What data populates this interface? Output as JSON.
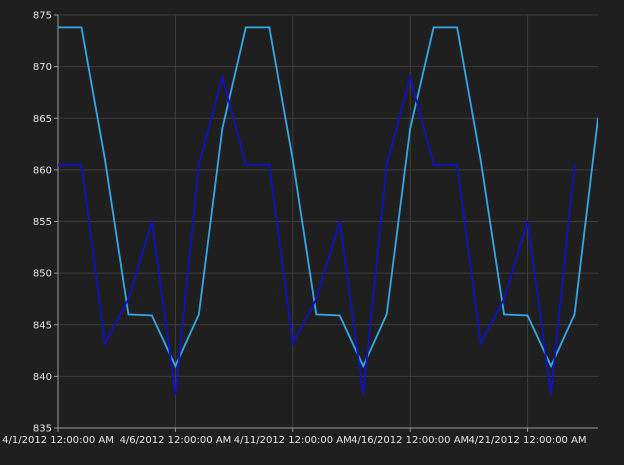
{
  "chart_data": {
    "type": "line",
    "title": "",
    "xlabel": "",
    "ylabel": "",
    "ylim": [
      835,
      875
    ],
    "yticks": [
      835,
      840,
      845,
      850,
      855,
      860,
      865,
      870,
      875
    ],
    "xlim": [
      "2012-04-01",
      "2012-04-24"
    ],
    "x_tick_labels": [
      {
        "date": "2012-04-01",
        "label": "4/1/2012 12:00:00 AM"
      },
      {
        "date": "2012-04-06",
        "label": "4/6/2012 12:00:00 AM"
      },
      {
        "date": "2012-04-11",
        "label": "4/11/2012 12:00:00 AM"
      },
      {
        "date": "2012-04-16",
        "label": "4/16/2012 12:00:00 AM"
      },
      {
        "date": "2012-04-21",
        "label": "4/21/2012 12:00:00 AM"
      }
    ],
    "grid": true,
    "legend": "none",
    "series": [
      {
        "color": "#33a8e6",
        "points": [
          {
            "x": "2012-04-01",
            "y": 873.8
          },
          {
            "x": "2012-04-02",
            "y": 873.8
          },
          {
            "x": "2012-04-03",
            "y": 861
          },
          {
            "x": "2012-04-04",
            "y": 846
          },
          {
            "x": "2012-04-05",
            "y": 845.9
          },
          {
            "x": "2012-04-06",
            "y": 841
          },
          {
            "x": "2012-04-07",
            "y": 846
          },
          {
            "x": "2012-04-08",
            "y": 864
          },
          {
            "x": "2012-04-09",
            "y": 873.8
          },
          {
            "x": "2012-04-10",
            "y": 873.8
          },
          {
            "x": "2012-04-11",
            "y": 861
          },
          {
            "x": "2012-04-12",
            "y": 846
          },
          {
            "x": "2012-04-13",
            "y": 845.9
          },
          {
            "x": "2012-04-14",
            "y": 841
          },
          {
            "x": "2012-04-15",
            "y": 846
          },
          {
            "x": "2012-04-16",
            "y": 864
          },
          {
            "x": "2012-04-17",
            "y": 873.8
          },
          {
            "x": "2012-04-18",
            "y": 873.8
          },
          {
            "x": "2012-04-19",
            "y": 861
          },
          {
            "x": "2012-04-20",
            "y": 846
          },
          {
            "x": "2012-04-21",
            "y": 845.9
          },
          {
            "x": "2012-04-22",
            "y": 841
          },
          {
            "x": "2012-04-23",
            "y": 846
          },
          {
            "x": "2012-04-24",
            "y": 865
          }
        ]
      },
      {
        "color": "#1010c8",
        "points": [
          {
            "x": "2012-04-01",
            "y": 860.5
          },
          {
            "x": "2012-04-02",
            "y": 860.5
          },
          {
            "x": "2012-04-03",
            "y": 843.2
          },
          {
            "x": "2012-04-04",
            "y": 847.5
          },
          {
            "x": "2012-04-05",
            "y": 855
          },
          {
            "x": "2012-04-06",
            "y": 838.3
          },
          {
            "x": "2012-04-07",
            "y": 860.5
          },
          {
            "x": "2012-04-08",
            "y": 869
          },
          {
            "x": "2012-04-09",
            "y": 860.5
          },
          {
            "x": "2012-04-10",
            "y": 860.5
          },
          {
            "x": "2012-04-11",
            "y": 843.2
          },
          {
            "x": "2012-04-12",
            "y": 847.5
          },
          {
            "x": "2012-04-13",
            "y": 855
          },
          {
            "x": "2012-04-14",
            "y": 838.3
          },
          {
            "x": "2012-04-15",
            "y": 860.5
          },
          {
            "x": "2012-04-16",
            "y": 869
          },
          {
            "x": "2012-04-17",
            "y": 860.5
          },
          {
            "x": "2012-04-18",
            "y": 860.5
          },
          {
            "x": "2012-04-19",
            "y": 843.2
          },
          {
            "x": "2012-04-20",
            "y": 847.5
          },
          {
            "x": "2012-04-21",
            "y": 855
          },
          {
            "x": "2012-04-22",
            "y": 838.3
          },
          {
            "x": "2012-04-23",
            "y": 860.5
          }
        ]
      }
    ]
  }
}
